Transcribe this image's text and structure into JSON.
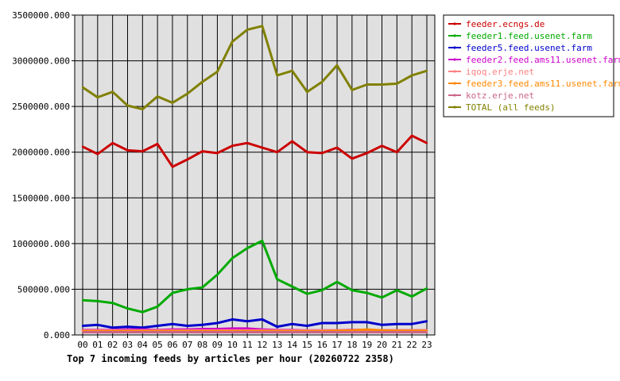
{
  "chart_data": {
    "type": "line",
    "title": "Top 7 incoming feeds by articles per hour (20260722 2358)",
    "xlabel": "",
    "ylabel": "",
    "categories": [
      "00",
      "01",
      "02",
      "03",
      "04",
      "05",
      "06",
      "07",
      "08",
      "09",
      "10",
      "11",
      "12",
      "13",
      "14",
      "15",
      "16",
      "17",
      "18",
      "19",
      "20",
      "21",
      "22",
      "23"
    ],
    "y_ticks": [
      "0.000",
      "500000.000",
      "1000000.000",
      "1500000.000",
      "2000000.000",
      "2500000.000",
      "3000000.000",
      "3500000.000"
    ],
    "ylim": [
      0,
      3500000
    ],
    "grid": true,
    "legend_position": "right",
    "plot_background": "#e0e0e0",
    "series": [
      {
        "name": "feeder.ecngs.de",
        "color": "#cc0000",
        "values": [
          2060000,
          1980000,
          2100000,
          2020000,
          2010000,
          2090000,
          1840000,
          1920000,
          2010000,
          1990000,
          2070000,
          2100000,
          2050000,
          2000000,
          2120000,
          2000000,
          1990000,
          2050000,
          1930000,
          1990000,
          2070000,
          2000000,
          2180000,
          2100000
        ]
      },
      {
        "name": "feeder1.feed.usenet.farm",
        "color": "#00aa00",
        "values": [
          380000,
          370000,
          350000,
          290000,
          250000,
          310000,
          460000,
          500000,
          520000,
          660000,
          840000,
          950000,
          1030000,
          610000,
          530000,
          450000,
          490000,
          580000,
          490000,
          460000,
          410000,
          490000,
          420000,
          510000
        ]
      },
      {
        "name": "feeder5.feed.usenet.farm",
        "color": "#0000cc",
        "values": [
          100000,
          110000,
          80000,
          90000,
          80000,
          100000,
          120000,
          100000,
          110000,
          130000,
          170000,
          150000,
          170000,
          90000,
          120000,
          100000,
          130000,
          130000,
          140000,
          140000,
          110000,
          120000,
          120000,
          150000
        ]
      },
      {
        "name": "feeder2.feed.ams11.usenet.farm",
        "color": "#cc00cc",
        "values": [
          55000,
          55000,
          55000,
          60000,
          60000,
          55000,
          60000,
          60000,
          65000,
          65000,
          70000,
          70000,
          60000,
          55000,
          55000,
          50000,
          50000,
          50000,
          55000,
          55000,
          50000,
          50000,
          50000,
          50000
        ]
      },
      {
        "name": "iqoq.erje.net",
        "color": "#ff8080",
        "values": [
          50000,
          50000,
          50000,
          50000,
          50000,
          50000,
          50000,
          50000,
          50000,
          50000,
          50000,
          50000,
          50000,
          50000,
          50000,
          50000,
          50000,
          50000,
          50000,
          50000,
          50000,
          50000,
          50000,
          50000
        ]
      },
      {
        "name": "feeder3.feed.ams11.usenet.farm",
        "color": "#ff8800",
        "values": [
          40000,
          40000,
          40000,
          40000,
          40000,
          40000,
          40000,
          40000,
          40000,
          40000,
          40000,
          40000,
          40000,
          40000,
          40000,
          40000,
          40000,
          45000,
          50000,
          60000,
          50000,
          45000,
          45000,
          45000
        ]
      },
      {
        "name": "kotz.erje.net",
        "color": "#cc6688",
        "values": [
          30000,
          30000,
          30000,
          30000,
          30000,
          30000,
          30000,
          30000,
          30000,
          30000,
          30000,
          30000,
          30000,
          30000,
          30000,
          30000,
          30000,
          30000,
          30000,
          30000,
          30000,
          30000,
          30000,
          30000
        ]
      },
      {
        "name": "TOTAL (all feeds)",
        "color": "#808000",
        "values": [
          2710000,
          2600000,
          2660000,
          2510000,
          2470000,
          2610000,
          2540000,
          2640000,
          2770000,
          2880000,
          3210000,
          3340000,
          3380000,
          2840000,
          2890000,
          2660000,
          2770000,
          2950000,
          2680000,
          2740000,
          2740000,
          2750000,
          2840000,
          2890000
        ]
      }
    ]
  }
}
